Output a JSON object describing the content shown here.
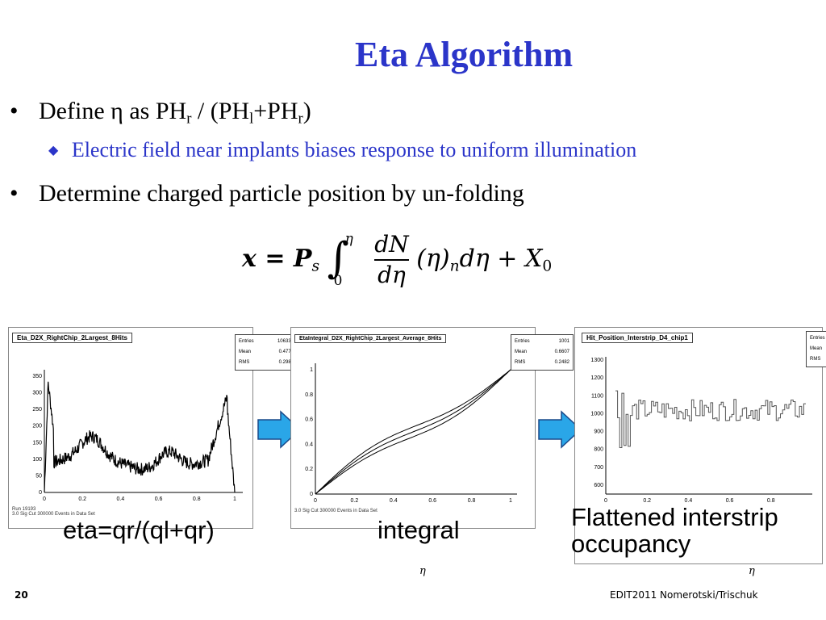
{
  "title": "Eta Algorithm",
  "bullets": {
    "b1_pre": "Define ",
    "b1_eta": "η",
    "b1_mid": " as PH",
    "b1_sub_r": "r",
    "b1_slash": " / (PH",
    "b1_sub_l": "l",
    "b1_plus": "+PH",
    "b1_sub_r2": "r",
    "b1_close": ")",
    "sub1": "Electric field near implants biases response to uniform illumination",
    "b2": "Determine charged particle position by un-folding"
  },
  "equation": {
    "lhs": "x = P",
    "lhs_sub": "s",
    "upper": "η",
    "lower": "0",
    "num": "dN",
    "den": "dη",
    "rest": "(η)",
    "rest_sub": "n",
    "tail": "dη + X",
    "tail_sub": "0"
  },
  "plots": [
    {
      "hist_title": "Eta_D2X_RightChip_2Largest_8Hits",
      "stats": [
        [
          "Entries",
          "106336"
        ],
        [
          "Mean",
          "0.4775"
        ],
        [
          "RMS",
          "0.2983"
        ]
      ],
      "y_ticks": [
        "350",
        "300",
        "250",
        "200",
        "150",
        "100",
        "50",
        "0"
      ],
      "x_ticks": [
        "0",
        "0.2",
        "0.4",
        "0.6",
        "0.8",
        "1"
      ],
      "caption": "eta=qr/(ql+qr)",
      "footnote": "Run 19193\n3.0 Sig Cut 300000 Events in Data Set\n2010-10-20 00:22:20"
    },
    {
      "hist_title": "EtaIntegral_D2X_RightChip_2Largest_Average_8Hits",
      "stats": [
        [
          "Entries",
          "1001"
        ],
        [
          "Mean",
          "0.6607"
        ],
        [
          "RMS",
          "0.2482"
        ]
      ],
      "y_ticks": [
        "1",
        "0.8",
        "0.6",
        "0.4",
        "0.2",
        "0"
      ],
      "x_ticks": [
        "0",
        "0.2",
        "0.4",
        "0.6",
        "0.8",
        "1"
      ],
      "caption": "integral",
      "footnote": "Run 19193\n3.0 Sig Cut 300000 Events in Data Set\n2010-10-20 00:22:20"
    },
    {
      "hist_title": "Hit_Position_Interstrip_D4_chip1",
      "stats": [
        [
          "Entries",
          ""
        ],
        [
          "Mean",
          ""
        ],
        [
          "RMS",
          ""
        ]
      ],
      "y_ticks": [
        "1300",
        "1200",
        "1100",
        "1000",
        "900",
        "800",
        "700",
        "600"
      ],
      "x_ticks": [
        "0",
        "0.2",
        "0.4",
        "0.6",
        "0.8"
      ],
      "caption_line1": "Flattened interstrip",
      "caption_line2": "occupancy",
      "axis_label": "η"
    }
  ],
  "axis_label_mid": "η",
  "footer": {
    "page": "20",
    "credit": "EDIT2011 Nomerotski/Trischuk"
  },
  "colors": {
    "title": "#2b35c9",
    "arrow": "#2aa6e8",
    "arrow_outline": "#1a4a8a"
  }
}
